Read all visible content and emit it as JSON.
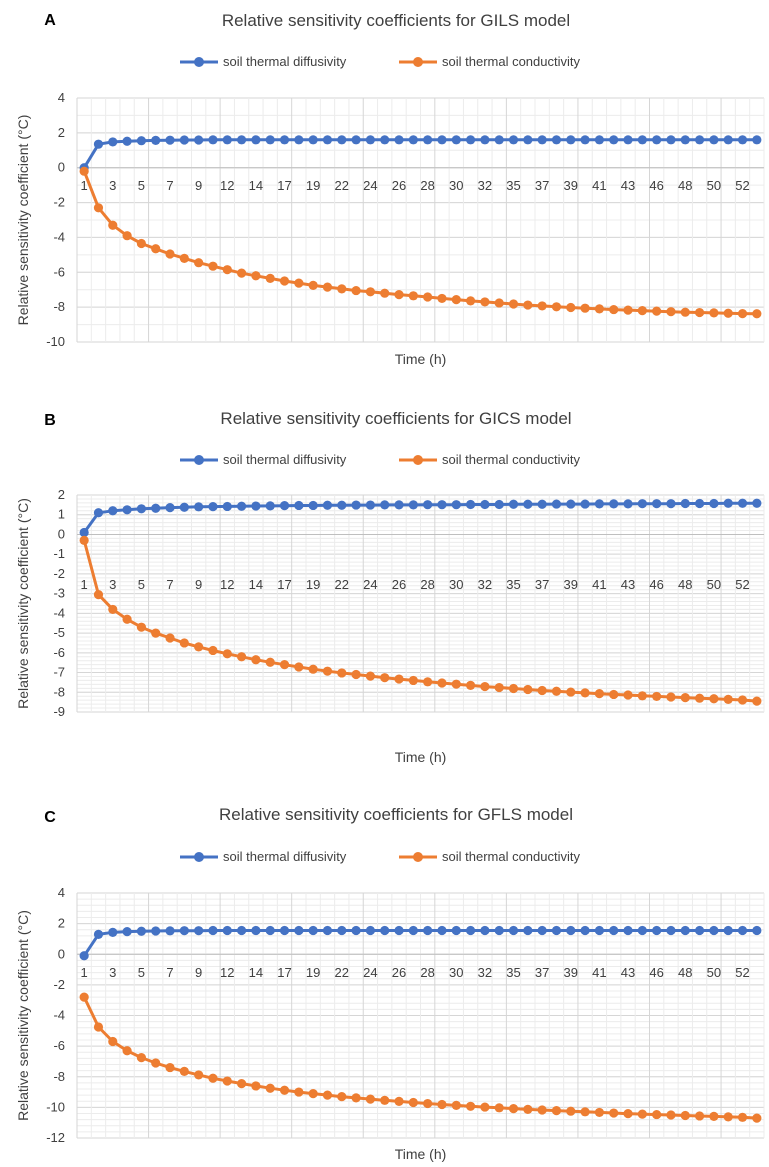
{
  "chart_data": [
    {
      "type": "line",
      "panel_label": "A",
      "title": "Relative sensitivity coefficients for GILS model",
      "xlabel": "Time (h)",
      "ylabel": "Relative sensitivity coefficient (°C)",
      "ylim": [
        -10,
        4
      ],
      "yticks": [
        4,
        2,
        0,
        -2,
        -4,
        -6,
        -8,
        -10
      ],
      "x_tick_labels": [
        "1",
        "3",
        "5",
        "7",
        "9",
        "12",
        "14",
        "17",
        "19",
        "22",
        "24",
        "26",
        "28",
        "30",
        "32",
        "35",
        "37",
        "39",
        "41",
        "43",
        "46",
        "48",
        "50",
        "52"
      ],
      "grid": true,
      "legend": "top-center",
      "series": [
        {
          "name": "soil thermal diffusivity",
          "color": "#4472C4",
          "values": [
            0.0,
            1.35,
            1.48,
            1.52,
            1.55,
            1.57,
            1.58,
            1.59,
            1.59,
            1.6,
            1.6,
            1.6,
            1.6,
            1.6,
            1.6,
            1.6,
            1.6,
            1.6,
            1.6,
            1.6,
            1.6,
            1.6,
            1.6,
            1.6,
            1.6,
            1.6,
            1.6,
            1.6,
            1.6,
            1.6,
            1.6,
            1.6,
            1.6,
            1.6,
            1.6,
            1.6,
            1.6,
            1.6,
            1.6,
            1.6,
            1.6,
            1.6,
            1.6,
            1.6,
            1.6,
            1.6,
            1.6,
            1.6
          ]
        },
        {
          "name": "soil thermal conductivity",
          "color": "#ED7D31",
          "values": [
            -0.2,
            -2.3,
            -3.3,
            -3.9,
            -4.35,
            -4.65,
            -4.95,
            -5.2,
            -5.45,
            -5.65,
            -5.85,
            -6.05,
            -6.2,
            -6.35,
            -6.5,
            -6.62,
            -6.75,
            -6.85,
            -6.95,
            -7.05,
            -7.12,
            -7.2,
            -7.28,
            -7.35,
            -7.42,
            -7.5,
            -7.57,
            -7.64,
            -7.7,
            -7.76,
            -7.82,
            -7.88,
            -7.93,
            -7.98,
            -8.02,
            -8.06,
            -8.1,
            -8.14,
            -8.17,
            -8.2,
            -8.23,
            -8.26,
            -8.29,
            -8.31,
            -8.33,
            -8.35,
            -8.37,
            -8.38
          ]
        }
      ]
    },
    {
      "type": "line",
      "panel_label": "B",
      "title": "Relative sensitivity coefficients for GICS  model",
      "xlabel": "Time (h)",
      "ylabel": "Relative sensitivity coefficient (°C)",
      "ylim": [
        -9,
        2
      ],
      "yticks": [
        2,
        1,
        0,
        -1,
        -2,
        -3,
        -4,
        -5,
        -6,
        -7,
        -8,
        -9
      ],
      "x_tick_labels": [
        "1",
        "3",
        "5",
        "7",
        "9",
        "12",
        "14",
        "17",
        "19",
        "22",
        "24",
        "26",
        "28",
        "30",
        "32",
        "35",
        "37",
        "39",
        "41",
        "43",
        "46",
        "48",
        "50",
        "52"
      ],
      "grid": true,
      "legend": "top-center",
      "series": [
        {
          "name": "soil thermal diffusivity",
          "color": "#4472C4",
          "values": [
            0.1,
            1.1,
            1.2,
            1.25,
            1.3,
            1.33,
            1.36,
            1.38,
            1.4,
            1.41,
            1.42,
            1.43,
            1.44,
            1.45,
            1.46,
            1.47,
            1.47,
            1.48,
            1.48,
            1.49,
            1.49,
            1.5,
            1.5,
            1.5,
            1.51,
            1.51,
            1.51,
            1.52,
            1.52,
            1.52,
            1.53,
            1.53,
            1.53,
            1.54,
            1.54,
            1.54,
            1.55,
            1.55,
            1.55,
            1.56,
            1.56,
            1.56,
            1.57,
            1.57,
            1.57,
            1.58,
            1.58,
            1.58
          ]
        },
        {
          "name": "soil thermal conductivity",
          "color": "#ED7D31",
          "values": [
            -0.3,
            -3.05,
            -3.8,
            -4.3,
            -4.7,
            -5.0,
            -5.25,
            -5.5,
            -5.7,
            -5.88,
            -6.05,
            -6.2,
            -6.35,
            -6.48,
            -6.6,
            -6.72,
            -6.83,
            -6.93,
            -7.02,
            -7.1,
            -7.18,
            -7.26,
            -7.33,
            -7.4,
            -7.47,
            -7.53,
            -7.59,
            -7.65,
            -7.71,
            -7.76,
            -7.81,
            -7.86,
            -7.91,
            -7.95,
            -7.99,
            -8.03,
            -8.07,
            -8.11,
            -8.14,
            -8.18,
            -8.21,
            -8.24,
            -8.27,
            -8.3,
            -8.33,
            -8.36,
            -8.39,
            -8.45
          ]
        }
      ]
    },
    {
      "type": "line",
      "panel_label": "C",
      "title": "Relative sensitivity coefficients for GFLS model",
      "xlabel": "Time (h)",
      "ylabel": "Relative sensitivity coefficient (°C)",
      "ylim": [
        -12,
        4
      ],
      "yticks": [
        4,
        2,
        0,
        -2,
        -4,
        -6,
        -8,
        -10,
        -12
      ],
      "x_tick_labels": [
        "1",
        "3",
        "5",
        "7",
        "9",
        "12",
        "14",
        "17",
        "19",
        "22",
        "24",
        "26",
        "28",
        "30",
        "32",
        "35",
        "37",
        "39",
        "41",
        "43",
        "46",
        "48",
        "50",
        "52"
      ],
      "grid": true,
      "legend": "top-center",
      "series": [
        {
          "name": "soil thermal diffusivity",
          "color": "#4472C4",
          "values": [
            -0.1,
            1.3,
            1.43,
            1.48,
            1.5,
            1.52,
            1.53,
            1.54,
            1.54,
            1.55,
            1.55,
            1.55,
            1.55,
            1.55,
            1.55,
            1.55,
            1.55,
            1.55,
            1.55,
            1.55,
            1.55,
            1.55,
            1.55,
            1.55,
            1.55,
            1.55,
            1.55,
            1.55,
            1.55,
            1.55,
            1.55,
            1.55,
            1.55,
            1.55,
            1.55,
            1.55,
            1.55,
            1.55,
            1.55,
            1.55,
            1.55,
            1.55,
            1.55,
            1.55,
            1.55,
            1.55,
            1.55,
            1.55
          ]
        },
        {
          "name": "soil thermal conductivity",
          "color": "#ED7D31",
          "values": [
            -2.8,
            -4.75,
            -5.7,
            -6.3,
            -6.75,
            -7.1,
            -7.4,
            -7.65,
            -7.88,
            -8.1,
            -8.28,
            -8.45,
            -8.6,
            -8.75,
            -8.88,
            -9.0,
            -9.1,
            -9.2,
            -9.3,
            -9.38,
            -9.46,
            -9.54,
            -9.61,
            -9.68,
            -9.75,
            -9.81,
            -9.87,
            -9.93,
            -9.98,
            -10.03,
            -10.08,
            -10.13,
            -10.17,
            -10.21,
            -10.25,
            -10.29,
            -10.33,
            -10.37,
            -10.41,
            -10.44,
            -10.47,
            -10.5,
            -10.53,
            -10.56,
            -10.59,
            -10.62,
            -10.65,
            -10.7
          ]
        }
      ]
    }
  ]
}
